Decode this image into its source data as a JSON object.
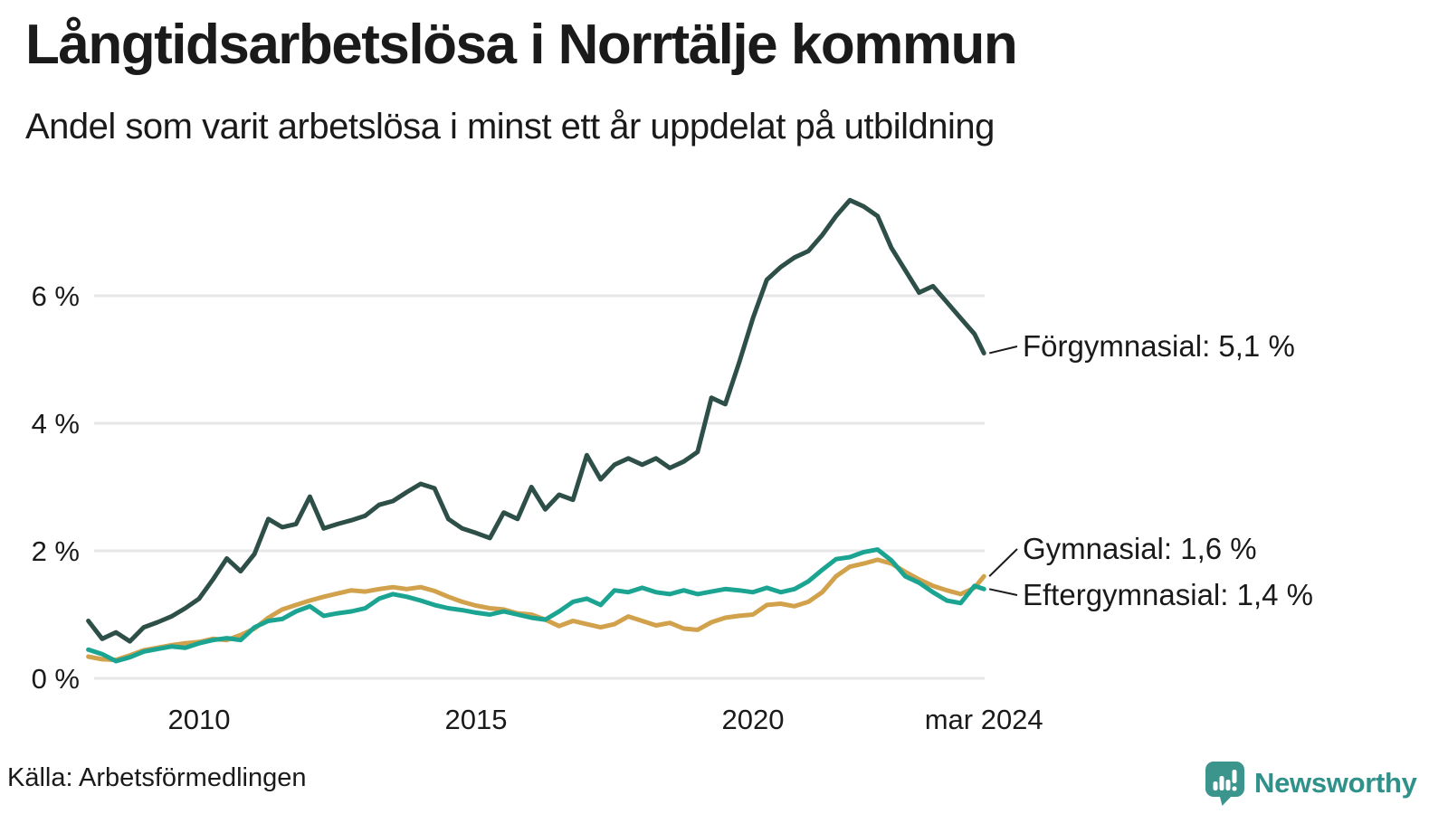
{
  "footer": {
    "source": "Källa: Arbetsförmedlingen",
    "brand": "Newsworthy",
    "brand_icon": "newsworthy-speech-bubble-chart-icon"
  },
  "colors": {
    "grid": "#e7e7ea",
    "text": "#1a1a1a",
    "brand_text": "#2e918a",
    "brand_icon": "#3b958d"
  },
  "chart_data": {
    "type": "line",
    "title": "Långtidsarbetslösa i Norrtälje kommun",
    "subtitle": "Andel som varit arbetslösa i minst ett år uppdelat på utbildning",
    "xlabel": "",
    "ylabel": "",
    "grid": true,
    "legend_position": "end-of-line labels",
    "ylim": [
      0,
      7.7
    ],
    "xlim": [
      2008.17,
      2024.17
    ],
    "yticks": [
      {
        "value": 0,
        "label": "0 %"
      },
      {
        "value": 2,
        "label": "2 %"
      },
      {
        "value": 4,
        "label": "4 %"
      },
      {
        "value": 6,
        "label": "6 %"
      }
    ],
    "xticks": [
      {
        "x": 2010,
        "label": "2010"
      },
      {
        "x": 2015,
        "label": "2015"
      },
      {
        "x": 2020,
        "label": "2020"
      },
      {
        "x": 2024.17,
        "label": "mar 2024"
      }
    ],
    "x": [
      2008.0,
      2008.25,
      2008.5,
      2008.75,
      2009.0,
      2009.25,
      2009.5,
      2009.75,
      2010.0,
      2010.25,
      2010.5,
      2010.75,
      2011.0,
      2011.25,
      2011.5,
      2011.75,
      2012.0,
      2012.25,
      2012.5,
      2012.75,
      2013.0,
      2013.25,
      2013.5,
      2013.75,
      2014.0,
      2014.25,
      2014.5,
      2014.75,
      2015.0,
      2015.25,
      2015.5,
      2015.75,
      2016.0,
      2016.25,
      2016.5,
      2016.75,
      2017.0,
      2017.25,
      2017.5,
      2017.75,
      2018.0,
      2018.25,
      2018.5,
      2018.75,
      2019.0,
      2019.25,
      2019.5,
      2019.75,
      2020.0,
      2020.25,
      2020.5,
      2020.75,
      2021.0,
      2021.25,
      2021.5,
      2021.75,
      2022.0,
      2022.25,
      2022.5,
      2022.75,
      2023.0,
      2023.25,
      2023.5,
      2023.75,
      2024.0,
      2024.17
    ],
    "series": [
      {
        "name": "Förgymnasial",
        "label": "Förgymnasial: 5,1 %",
        "end_value": "5,1 %",
        "color": "#2d4f48",
        "values": [
          0.9,
          0.62,
          0.72,
          0.58,
          0.8,
          0.88,
          0.97,
          1.1,
          1.25,
          1.55,
          1.88,
          1.68,
          1.95,
          2.5,
          2.37,
          2.42,
          2.85,
          2.35,
          2.42,
          2.48,
          2.55,
          2.72,
          2.78,
          2.92,
          3.05,
          2.98,
          2.5,
          2.35,
          2.28,
          2.2,
          2.6,
          2.5,
          3.0,
          2.65,
          2.88,
          2.8,
          3.5,
          3.12,
          3.35,
          3.45,
          3.35,
          3.45,
          3.3,
          3.4,
          3.55,
          4.4,
          4.3,
          4.95,
          5.65,
          6.25,
          6.45,
          6.6,
          6.7,
          6.95,
          7.25,
          7.5,
          7.4,
          7.25,
          6.75,
          6.4,
          6.05,
          6.15,
          5.9,
          5.65,
          5.4,
          5.1
        ]
      },
      {
        "name": "Gymnasial",
        "label": "Gymnasial: 1,6 %",
        "end_value": "1,6 %",
        "color": "#d2a14c",
        "values": [
          0.34,
          0.3,
          0.29,
          0.36,
          0.44,
          0.48,
          0.52,
          0.55,
          0.57,
          0.62,
          0.6,
          0.68,
          0.78,
          0.95,
          1.08,
          1.15,
          1.22,
          1.28,
          1.33,
          1.38,
          1.36,
          1.4,
          1.43,
          1.4,
          1.43,
          1.37,
          1.28,
          1.2,
          1.14,
          1.1,
          1.08,
          1.02,
          1.0,
          0.92,
          0.82,
          0.9,
          0.85,
          0.8,
          0.85,
          0.97,
          0.9,
          0.83,
          0.87,
          0.78,
          0.76,
          0.88,
          0.95,
          0.98,
          1.0,
          1.15,
          1.17,
          1.13,
          1.2,
          1.35,
          1.6,
          1.75,
          1.8,
          1.86,
          1.8,
          1.67,
          1.55,
          1.45,
          1.38,
          1.32,
          1.42,
          1.6
        ]
      },
      {
        "name": "Eftergymnasial",
        "label": "Eftergymnasial: 1,4 %",
        "end_value": "1,4 %",
        "color": "#1ba492",
        "values": [
          0.45,
          0.38,
          0.27,
          0.33,
          0.42,
          0.46,
          0.5,
          0.48,
          0.55,
          0.6,
          0.63,
          0.6,
          0.8,
          0.9,
          0.93,
          1.05,
          1.13,
          0.98,
          1.02,
          1.05,
          1.1,
          1.25,
          1.32,
          1.28,
          1.22,
          1.15,
          1.1,
          1.07,
          1.03,
          1.0,
          1.05,
          1.0,
          0.95,
          0.92,
          1.05,
          1.2,
          1.25,
          1.15,
          1.38,
          1.35,
          1.42,
          1.35,
          1.32,
          1.38,
          1.32,
          1.36,
          1.4,
          1.38,
          1.35,
          1.42,
          1.35,
          1.4,
          1.52,
          1.7,
          1.87,
          1.9,
          1.98,
          2.02,
          1.85,
          1.6,
          1.5,
          1.35,
          1.22,
          1.18,
          1.45,
          1.4
        ]
      }
    ]
  }
}
